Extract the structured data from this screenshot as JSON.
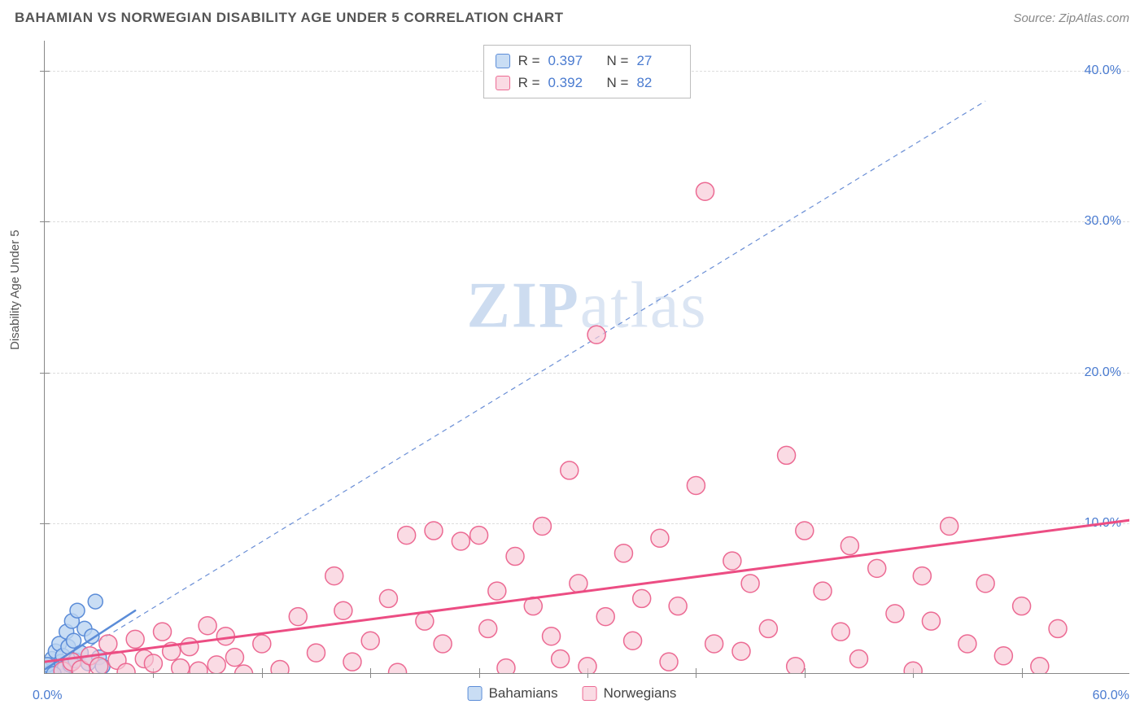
{
  "title": "BAHAMIAN VS NORWEGIAN DISABILITY AGE UNDER 5 CORRELATION CHART",
  "source": "Source: ZipAtlas.com",
  "y_axis_label": "Disability Age Under 5",
  "watermark_zip": "ZIP",
  "watermark_atlas": "atlas",
  "chart": {
    "type": "scatter",
    "background_color": "#ffffff",
    "grid_color": "#dddddd",
    "axis_color": "#888888",
    "value_color": "#4a7bd0",
    "xlim": [
      0,
      60
    ],
    "ylim": [
      0,
      42
    ],
    "x_origin_label": "0.0%",
    "x_end_label": "60.0%",
    "x_tick_positions_pct": [
      10,
      20,
      30,
      40,
      50,
      60,
      70,
      80,
      90
    ],
    "y_ticks": [
      {
        "v": 10,
        "label": "10.0%"
      },
      {
        "v": 20,
        "label": "20.0%"
      },
      {
        "v": 30,
        "label": "30.0%"
      },
      {
        "v": 40,
        "label": "40.0%"
      }
    ],
    "reference_line": {
      "color": "#6b8fd6",
      "dash": "6 5",
      "width": 1.2,
      "x1": 0,
      "y1": 0,
      "x2": 52,
      "y2": 38
    },
    "series": [
      {
        "name": "Bahamians",
        "legend_label": "Bahamians",
        "marker_fill": "#bcd4f1cc",
        "marker_stroke": "#5b8cd8",
        "marker_r": 9,
        "line_color": "#5b8cd8",
        "line_width": 2.5,
        "trend_x1": 0,
        "trend_y1": 0.3,
        "trend_x2": 5,
        "trend_y2": 4.2,
        "R": "0.397",
        "N": "27",
        "points": [
          [
            0.2,
            0.2
          ],
          [
            0.3,
            0.5
          ],
          [
            0.4,
            1.0
          ],
          [
            0.5,
            0.3
          ],
          [
            0.6,
            1.5
          ],
          [
            0.7,
            0.1
          ],
          [
            0.8,
            2.0
          ],
          [
            0.9,
            0.8
          ],
          [
            1.0,
            1.2
          ],
          [
            1.1,
            0.4
          ],
          [
            1.2,
            2.8
          ],
          [
            1.3,
            1.8
          ],
          [
            1.4,
            0.6
          ],
          [
            1.5,
            3.5
          ],
          [
            1.6,
            2.2
          ],
          [
            1.7,
            0.9
          ],
          [
            1.8,
            4.2
          ],
          [
            2.0,
            1.4
          ],
          [
            2.2,
            3.0
          ],
          [
            2.4,
            0.7
          ],
          [
            2.6,
            2.5
          ],
          [
            2.8,
            4.8
          ],
          [
            3.0,
            1.1
          ],
          [
            3.2,
            0.5
          ],
          [
            0.1,
            0.0
          ],
          [
            0.15,
            0.6
          ],
          [
            0.5,
            0.0
          ]
        ]
      },
      {
        "name": "Norwegians",
        "legend_label": "Norwegians",
        "marker_fill": "#f7c9d7aa",
        "marker_stroke": "#ec6a93",
        "marker_r": 11,
        "line_color": "#ec4d83",
        "line_width": 3,
        "trend_x1": 0,
        "trend_y1": 0.8,
        "trend_x2": 60,
        "trend_y2": 10.2,
        "R": "0.392",
        "N": "82",
        "points": [
          [
            1,
            0.2
          ],
          [
            1.5,
            0.8
          ],
          [
            2,
            0.3
          ],
          [
            2.5,
            1.2
          ],
          [
            3,
            0.5
          ],
          [
            3.5,
            2.0
          ],
          [
            4,
            0.9
          ],
          [
            4.5,
            0.1
          ],
          [
            5,
            2.3
          ],
          [
            5.5,
            1.0
          ],
          [
            6,
            0.7
          ],
          [
            6.5,
            2.8
          ],
          [
            7,
            1.5
          ],
          [
            7.5,
            0.4
          ],
          [
            8,
            1.8
          ],
          [
            8.5,
            0.2
          ],
          [
            9,
            3.2
          ],
          [
            9.5,
            0.6
          ],
          [
            10,
            2.5
          ],
          [
            10.5,
            1.1
          ],
          [
            11,
            0.0
          ],
          [
            12,
            2.0
          ],
          [
            13,
            0.3
          ],
          [
            14,
            3.8
          ],
          [
            15,
            1.4
          ],
          [
            16,
            6.5
          ],
          [
            16.5,
            4.2
          ],
          [
            17,
            0.8
          ],
          [
            18,
            2.2
          ],
          [
            19,
            5.0
          ],
          [
            19.5,
            0.1
          ],
          [
            20,
            9.2
          ],
          [
            21,
            3.5
          ],
          [
            21.5,
            9.5
          ],
          [
            22,
            2.0
          ],
          [
            23,
            8.8
          ],
          [
            24,
            9.2
          ],
          [
            24.5,
            3.0
          ],
          [
            25,
            5.5
          ],
          [
            25.5,
            0.4
          ],
          [
            26,
            7.8
          ],
          [
            27,
            4.5
          ],
          [
            27.5,
            9.8
          ],
          [
            28,
            2.5
          ],
          [
            28.5,
            1.0
          ],
          [
            29,
            13.5
          ],
          [
            29.5,
            6.0
          ],
          [
            30,
            0.5
          ],
          [
            30.5,
            22.5
          ],
          [
            31,
            3.8
          ],
          [
            32,
            8.0
          ],
          [
            32.5,
            2.2
          ],
          [
            33,
            5.0
          ],
          [
            34,
            9.0
          ],
          [
            34.5,
            0.8
          ],
          [
            35,
            4.5
          ],
          [
            36,
            12.5
          ],
          [
            36.5,
            32.0
          ],
          [
            37,
            2.0
          ],
          [
            38,
            7.5
          ],
          [
            38.5,
            1.5
          ],
          [
            39,
            6.0
          ],
          [
            40,
            3.0
          ],
          [
            41,
            14.5
          ],
          [
            41.5,
            0.5
          ],
          [
            42,
            9.5
          ],
          [
            43,
            5.5
          ],
          [
            44,
            2.8
          ],
          [
            44.5,
            8.5
          ],
          [
            45,
            1.0
          ],
          [
            46,
            7.0
          ],
          [
            47,
            4.0
          ],
          [
            48,
            0.2
          ],
          [
            48.5,
            6.5
          ],
          [
            49,
            3.5
          ],
          [
            50,
            9.8
          ],
          [
            51,
            2.0
          ],
          [
            52,
            6.0
          ],
          [
            53,
            1.2
          ],
          [
            54,
            4.5
          ],
          [
            55,
            0.5
          ],
          [
            56,
            3.0
          ]
        ]
      }
    ]
  },
  "stats_box_labels": {
    "R": "R =",
    "N": "N ="
  }
}
